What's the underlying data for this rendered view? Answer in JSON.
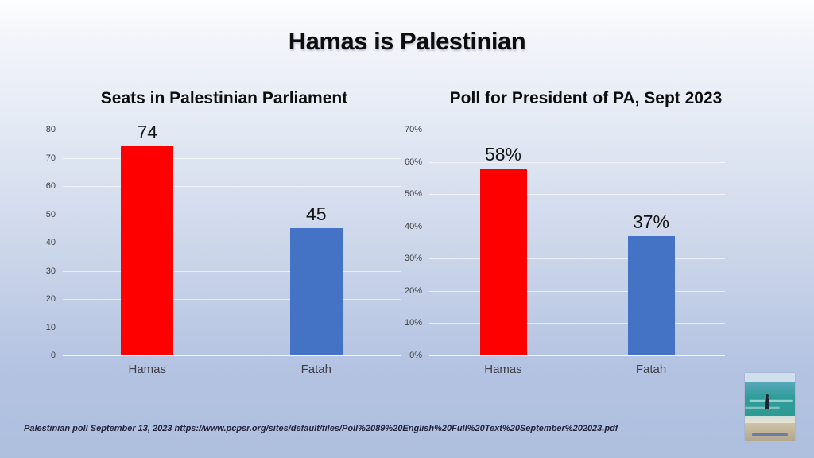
{
  "slide": {
    "title": "Hamas is Palestinian"
  },
  "chart_data": [
    {
      "type": "bar",
      "title": "Seats in Palestinian Parliament",
      "categories": [
        "Hamas",
        "Fatah"
      ],
      "values": [
        74,
        45
      ],
      "value_labels": [
        "74",
        "45"
      ],
      "bar_colors": [
        "#ff0000",
        "#4472c4"
      ],
      "xlabel": "",
      "ylabel": "",
      "ylim": [
        0,
        80
      ],
      "ytick_step": 10,
      "ytick_suffix": "",
      "grid": true,
      "legend": "none"
    },
    {
      "type": "bar",
      "title": "Poll for President of PA, Sept 2023",
      "categories": [
        "Hamas",
        "Fatah"
      ],
      "values": [
        58,
        37
      ],
      "value_labels": [
        "58%",
        "37%"
      ],
      "bar_colors": [
        "#ff0000",
        "#4472c4"
      ],
      "xlabel": "",
      "ylabel": "",
      "ylim": [
        0,
        70
      ],
      "ytick_step": 10,
      "ytick_suffix": "%",
      "grid": true,
      "legend": "none"
    }
  ],
  "footer": {
    "source": "Palestinian poll September 13, 2023 https://www.pcpsr.org/sites/default/files/Poll%2089%20English%20Full%20Text%20September%202023.pdf"
  },
  "photo": {
    "alt": "person-standing-on-beach-photo"
  },
  "colors": {
    "hamas_bar": "#ff0000",
    "fatah_bar": "#4472c4",
    "background_bottom": "#aebfde",
    "background_top": "#fdfefe"
  }
}
